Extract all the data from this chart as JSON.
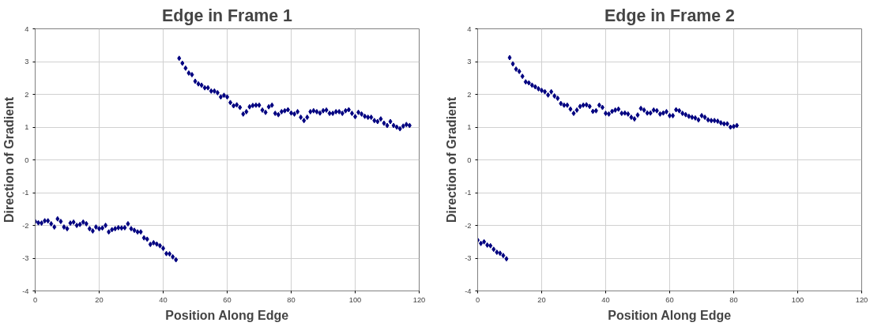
{
  "chart_data": [
    {
      "type": "scatter",
      "title": "Edge in Frame 1",
      "xlabel": "Position Along Edge",
      "ylabel": "Direction of Gradient",
      "xlim": [
        0,
        120
      ],
      "xticks": [
        0,
        20,
        40,
        60,
        80,
        100,
        120
      ],
      "ylim": [
        -4,
        4
      ],
      "yticks": [
        -4,
        -3,
        -2,
        -1,
        0,
        1,
        2,
        3,
        4
      ],
      "grid": true,
      "marker": "diamond",
      "series": [
        {
          "color": "#000080",
          "x": [
            0,
            1,
            2,
            3,
            4,
            5,
            6,
            7,
            8,
            9,
            10,
            11,
            12,
            13,
            14,
            15,
            16,
            17,
            18,
            19,
            20,
            21,
            22,
            23,
            24,
            25,
            26,
            27,
            28,
            29,
            30,
            31,
            32,
            33,
            34,
            35,
            36,
            37,
            38,
            39,
            40,
            41,
            42,
            43,
            44,
            45,
            46,
            47,
            48,
            49,
            50,
            51,
            52,
            53,
            54,
            55,
            56,
            57,
            58,
            59,
            60,
            61,
            62,
            63,
            64,
            65,
            66,
            67,
            68,
            69,
            70,
            71,
            72,
            73,
            74,
            75,
            76,
            77,
            78,
            79,
            80,
            81,
            82,
            83,
            84,
            85,
            86,
            87,
            88,
            89,
            90,
            91,
            92,
            93,
            94,
            95,
            96,
            97,
            98,
            99,
            100,
            101,
            102,
            103,
            104,
            105,
            106,
            107,
            108,
            109,
            110,
            111,
            112,
            113,
            114,
            115,
            116,
            117
          ],
          "values": [
            -1.88,
            -1.92,
            -1.93,
            -1.86,
            -1.86,
            -1.95,
            -2.05,
            -1.8,
            -1.88,
            -2.05,
            -2.1,
            -1.93,
            -1.9,
            -2.0,
            -1.97,
            -1.9,
            -1.95,
            -2.1,
            -2.17,
            -2.05,
            -2.1,
            -2.08,
            -2.0,
            -2.2,
            -2.13,
            -2.1,
            -2.07,
            -2.08,
            -2.07,
            -1.95,
            -2.1,
            -2.15,
            -2.2,
            -2.2,
            -2.38,
            -2.42,
            -2.58,
            -2.53,
            -2.57,
            -2.62,
            -2.7,
            -2.86,
            -2.87,
            -2.96,
            -3.05,
            3.1,
            2.95,
            2.8,
            2.65,
            2.6,
            2.4,
            2.32,
            2.28,
            2.2,
            2.2,
            2.1,
            2.1,
            2.05,
            1.92,
            1.97,
            1.92,
            1.75,
            1.65,
            1.68,
            1.6,
            1.4,
            1.47,
            1.62,
            1.66,
            1.67,
            1.67,
            1.52,
            1.45,
            1.62,
            1.67,
            1.42,
            1.38,
            1.47,
            1.5,
            1.53,
            1.43,
            1.4,
            1.47,
            1.3,
            1.2,
            1.3,
            1.47,
            1.5,
            1.47,
            1.43,
            1.5,
            1.52,
            1.42,
            1.42,
            1.47,
            1.47,
            1.42,
            1.5,
            1.53,
            1.42,
            1.32,
            1.45,
            1.4,
            1.33,
            1.3,
            1.3,
            1.2,
            1.17,
            1.25,
            1.12,
            1.05,
            1.17,
            1.05,
            1.0,
            0.95,
            1.03,
            1.08,
            1.05
          ]
        }
      ]
    },
    {
      "type": "scatter",
      "title": "Edge in Frame 2",
      "xlabel": "Position Along Edge",
      "ylabel": "Direction of Gradient",
      "xlim": [
        0,
        120
      ],
      "xticks": [
        0,
        20,
        40,
        60,
        80,
        100,
        120
      ],
      "ylim": [
        -4,
        4
      ],
      "yticks": [
        -4,
        -3,
        -2,
        -1,
        0,
        1,
        2,
        3,
        4
      ],
      "grid": true,
      "marker": "diamond",
      "series": [
        {
          "color": "#000080",
          "x": [
            0,
            1,
            2,
            3,
            4,
            5,
            6,
            7,
            8,
            9,
            10,
            11,
            12,
            13,
            14,
            15,
            16,
            17,
            18,
            19,
            20,
            21,
            22,
            23,
            24,
            25,
            26,
            27,
            28,
            29,
            30,
            31,
            32,
            33,
            34,
            35,
            36,
            37,
            38,
            39,
            40,
            41,
            42,
            43,
            44,
            45,
            46,
            47,
            48,
            49,
            50,
            51,
            52,
            53,
            54,
            55,
            56,
            57,
            58,
            59,
            60,
            61,
            62,
            63,
            64,
            65,
            66,
            67,
            68,
            69,
            70,
            71,
            72,
            73,
            74,
            75,
            76,
            77,
            78,
            79,
            80,
            81
          ],
          "values": [
            -2.45,
            -2.55,
            -2.5,
            -2.6,
            -2.62,
            -2.73,
            -2.82,
            -2.85,
            -2.92,
            -3.02,
            3.12,
            2.93,
            2.77,
            2.7,
            2.55,
            2.38,
            2.35,
            2.28,
            2.23,
            2.17,
            2.12,
            2.08,
            1.98,
            2.08,
            1.95,
            1.88,
            1.72,
            1.67,
            1.67,
            1.55,
            1.42,
            1.52,
            1.63,
            1.67,
            1.68,
            1.63,
            1.48,
            1.5,
            1.67,
            1.6,
            1.42,
            1.4,
            1.48,
            1.52,
            1.55,
            1.42,
            1.43,
            1.4,
            1.3,
            1.25,
            1.37,
            1.57,
            1.52,
            1.43,
            1.43,
            1.52,
            1.5,
            1.4,
            1.43,
            1.47,
            1.35,
            1.35,
            1.53,
            1.5,
            1.42,
            1.38,
            1.33,
            1.3,
            1.28,
            1.22,
            1.35,
            1.3,
            1.22,
            1.2,
            1.2,
            1.18,
            1.13,
            1.1,
            1.1,
            1.0,
            1.02,
            1.05
          ]
        }
      ]
    }
  ]
}
